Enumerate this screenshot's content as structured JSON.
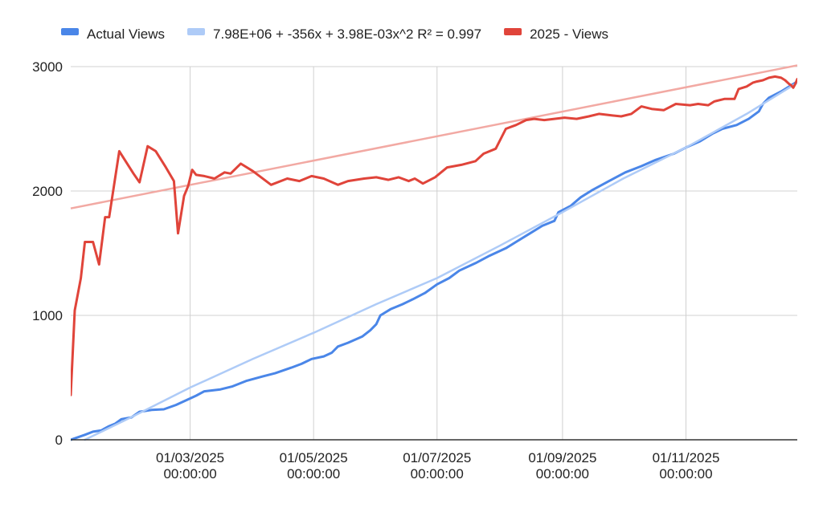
{
  "chart_data": {
    "type": "line",
    "title": "",
    "xlabel": "",
    "ylabel": "",
    "x_range": [
      "2025-01-01",
      "2025-12-26"
    ],
    "ylim": [
      0,
      3000
    ],
    "y_ticks": [
      "0",
      "1000",
      "2000",
      "3000"
    ],
    "x_ticks": [
      {
        "date": "2025-03-01",
        "line1": "01/03/2025",
        "line2": "00:00:00"
      },
      {
        "date": "2025-05-01",
        "line1": "01/05/2025",
        "line2": "00:00:00"
      },
      {
        "date": "2025-07-01",
        "line1": "01/07/2025",
        "line2": "00:00:00"
      },
      {
        "date": "2025-09-01",
        "line1": "01/09/2025",
        "line2": "00:00:00"
      },
      {
        "date": "2025-11-01",
        "line1": "01/11/2025",
        "line2": "00:00:00"
      }
    ],
    "grid": true,
    "legend_position": "top",
    "legend": [
      {
        "label": "Actual Views",
        "color": "#4a86e8"
      },
      {
        "label": "7.98E+06 + -356x + 3.98E-03x^2 R² = 0.997",
        "color": "#aecbf7"
      },
      {
        "label": "2025 - Views",
        "color": "#e0443a"
      }
    ],
    "series": [
      {
        "name": "Actual Views",
        "color": "#4a86e8",
        "points": [
          [
            "2025-01-01",
            0
          ],
          [
            "2025-01-08",
            40
          ],
          [
            "2025-01-12",
            65
          ],
          [
            "2025-01-16",
            75
          ],
          [
            "2025-01-20",
            110
          ],
          [
            "2025-01-23",
            130
          ],
          [
            "2025-01-26",
            165
          ],
          [
            "2025-01-31",
            180
          ],
          [
            "2025-02-04",
            225
          ],
          [
            "2025-02-10",
            240
          ],
          [
            "2025-02-16",
            245
          ],
          [
            "2025-02-22",
            280
          ],
          [
            "2025-02-28",
            325
          ],
          [
            "2025-03-04",
            355
          ],
          [
            "2025-03-08",
            390
          ],
          [
            "2025-03-16",
            405
          ],
          [
            "2025-03-22",
            430
          ],
          [
            "2025-03-29",
            475
          ],
          [
            "2025-04-06",
            510
          ],
          [
            "2025-04-12",
            535
          ],
          [
            "2025-04-20",
            580
          ],
          [
            "2025-04-25",
            610
          ],
          [
            "2025-04-30",
            650
          ],
          [
            "2025-05-06",
            670
          ],
          [
            "2025-05-10",
            700
          ],
          [
            "2025-05-13",
            750
          ],
          [
            "2025-05-18",
            780
          ],
          [
            "2025-05-25",
            830
          ],
          [
            "2025-05-29",
            880
          ],
          [
            "2025-06-01",
            930
          ],
          [
            "2025-06-03",
            1000
          ],
          [
            "2025-06-08",
            1050
          ],
          [
            "2025-06-14",
            1090
          ],
          [
            "2025-06-19",
            1130
          ],
          [
            "2025-06-25",
            1180
          ],
          [
            "2025-07-01",
            1250
          ],
          [
            "2025-07-07",
            1300
          ],
          [
            "2025-07-12",
            1360
          ],
          [
            "2025-07-20",
            1420
          ],
          [
            "2025-07-27",
            1480
          ],
          [
            "2025-08-04",
            1540
          ],
          [
            "2025-08-09",
            1590
          ],
          [
            "2025-08-16",
            1660
          ],
          [
            "2025-08-22",
            1720
          ],
          [
            "2025-08-28",
            1760
          ],
          [
            "2025-08-30",
            1830
          ],
          [
            "2025-09-05",
            1880
          ],
          [
            "2025-09-10",
            1950
          ],
          [
            "2025-09-16",
            2010
          ],
          [
            "2025-09-24",
            2080
          ],
          [
            "2025-10-02",
            2150
          ],
          [
            "2025-10-10",
            2200
          ],
          [
            "2025-10-17",
            2250
          ],
          [
            "2025-10-26",
            2300
          ],
          [
            "2025-11-01",
            2350
          ],
          [
            "2025-11-08",
            2400
          ],
          [
            "2025-11-14",
            2460
          ],
          [
            "2025-11-19",
            2500
          ],
          [
            "2025-11-26",
            2530
          ],
          [
            "2025-12-02",
            2580
          ],
          [
            "2025-12-07",
            2640
          ],
          [
            "2025-12-09",
            2700
          ],
          [
            "2025-12-12",
            2750
          ],
          [
            "2025-12-18",
            2800
          ],
          [
            "2025-12-23",
            2850
          ],
          [
            "2025-12-26",
            2880
          ]
        ]
      },
      {
        "name": "7.98E+06 + -356x + 3.98E-03x^2 R² = 0.997",
        "color": "#aecbf7",
        "points": [
          [
            "2025-01-08",
            0
          ],
          [
            "2025-02-01",
            190
          ],
          [
            "2025-03-01",
            420
          ],
          [
            "2025-04-01",
            650
          ],
          [
            "2025-05-01",
            860
          ],
          [
            "2025-06-01",
            1090
          ],
          [
            "2025-07-01",
            1300
          ],
          [
            "2025-08-01",
            1560
          ],
          [
            "2025-09-01",
            1830
          ],
          [
            "2025-10-01",
            2100
          ],
          [
            "2025-11-01",
            2350
          ],
          [
            "2025-12-01",
            2620
          ],
          [
            "2025-12-26",
            2870
          ]
        ]
      },
      {
        "name": "2025 - Views",
        "color": "#e0443a",
        "points": [
          [
            "2025-01-01",
            360
          ],
          [
            "2025-01-03",
            1040
          ],
          [
            "2025-01-06",
            1300
          ],
          [
            "2025-01-08",
            1590
          ],
          [
            "2025-01-12",
            1590
          ],
          [
            "2025-01-15",
            1410
          ],
          [
            "2025-01-18",
            1790
          ],
          [
            "2025-01-20",
            1790
          ],
          [
            "2025-01-25",
            2320
          ],
          [
            "2025-02-01",
            2140
          ],
          [
            "2025-02-04",
            2070
          ],
          [
            "2025-02-08",
            2360
          ],
          [
            "2025-02-12",
            2320
          ],
          [
            "2025-02-17",
            2190
          ],
          [
            "2025-02-21",
            2080
          ],
          [
            "2025-02-23",
            1660
          ],
          [
            "2025-02-26",
            1960
          ],
          [
            "2025-02-28",
            2040
          ],
          [
            "2025-03-02",
            2170
          ],
          [
            "2025-03-04",
            2130
          ],
          [
            "2025-03-08",
            2120
          ],
          [
            "2025-03-13",
            2100
          ],
          [
            "2025-03-18",
            2150
          ],
          [
            "2025-03-21",
            2140
          ],
          [
            "2025-03-26",
            2220
          ],
          [
            "2025-04-01",
            2160
          ],
          [
            "2025-04-10",
            2050
          ],
          [
            "2025-04-18",
            2100
          ],
          [
            "2025-04-24",
            2080
          ],
          [
            "2025-04-30",
            2120
          ],
          [
            "2025-05-06",
            2100
          ],
          [
            "2025-05-13",
            2050
          ],
          [
            "2025-05-18",
            2080
          ],
          [
            "2025-05-26",
            2100
          ],
          [
            "2025-06-01",
            2110
          ],
          [
            "2025-06-07",
            2090
          ],
          [
            "2025-06-12",
            2110
          ],
          [
            "2025-06-17",
            2080
          ],
          [
            "2025-06-20",
            2100
          ],
          [
            "2025-06-24",
            2060
          ],
          [
            "2025-06-30",
            2110
          ],
          [
            "2025-07-06",
            2190
          ],
          [
            "2025-07-13",
            2210
          ],
          [
            "2025-07-20",
            2240
          ],
          [
            "2025-07-24",
            2300
          ],
          [
            "2025-07-30",
            2340
          ],
          [
            "2025-08-04",
            2500
          ],
          [
            "2025-08-09",
            2530
          ],
          [
            "2025-08-14",
            2570
          ],
          [
            "2025-08-18",
            2580
          ],
          [
            "2025-08-23",
            2570
          ],
          [
            "2025-08-28",
            2580
          ],
          [
            "2025-09-02",
            2590
          ],
          [
            "2025-09-08",
            2580
          ],
          [
            "2025-09-14",
            2600
          ],
          [
            "2025-09-19",
            2620
          ],
          [
            "2025-09-24",
            2610
          ],
          [
            "2025-09-30",
            2600
          ],
          [
            "2025-10-05",
            2620
          ],
          [
            "2025-10-10",
            2680
          ],
          [
            "2025-10-15",
            2660
          ],
          [
            "2025-10-21",
            2650
          ],
          [
            "2025-10-27",
            2700
          ],
          [
            "2025-11-03",
            2690
          ],
          [
            "2025-11-07",
            2700
          ],
          [
            "2025-11-12",
            2690
          ],
          [
            "2025-11-15",
            2720
          ],
          [
            "2025-11-20",
            2740
          ],
          [
            "2025-11-25",
            2740
          ],
          [
            "2025-11-27",
            2820
          ],
          [
            "2025-12-01",
            2840
          ],
          [
            "2025-12-04",
            2870
          ],
          [
            "2025-12-06",
            2880
          ],
          [
            "2025-12-09",
            2890
          ],
          [
            "2025-12-12",
            2910
          ],
          [
            "2025-12-15",
            2920
          ],
          [
            "2025-12-18",
            2910
          ],
          [
            "2025-12-20",
            2890
          ],
          [
            "2025-12-22",
            2860
          ],
          [
            "2025-12-23",
            2850
          ],
          [
            "2025-12-24",
            2830
          ],
          [
            "2025-12-25",
            2860
          ],
          [
            "2025-12-26",
            2900
          ]
        ]
      }
    ],
    "trendlines": [
      {
        "series": "2025 - Views",
        "color": "#f2a9a3",
        "start": [
          "2025-01-01",
          1860
        ],
        "end": [
          "2025-12-26",
          3010
        ]
      }
    ]
  }
}
